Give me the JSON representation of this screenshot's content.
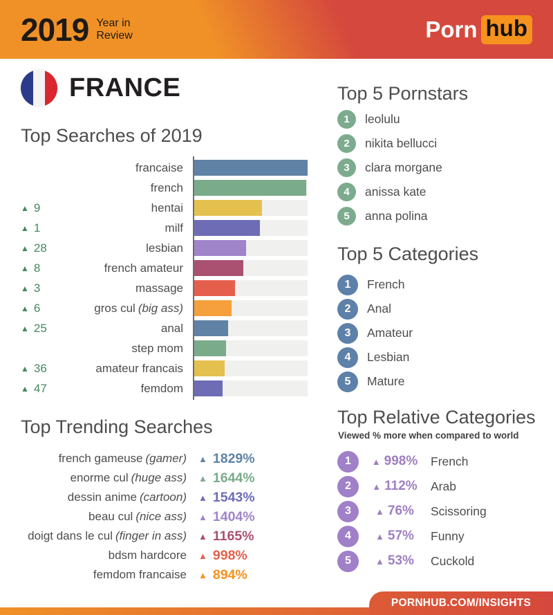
{
  "colors": {
    "brand_orange": "#f09127",
    "brand_red": "#d5483d",
    "logo_orange": "#f6921e",
    "heading_gray": "#4d4d4f",
    "rank_change_green": "#45875f",
    "pornstars_badge_green": "#7dab8d",
    "categories_badge_blue": "#5d81a8",
    "relative_badge_purple": "#a080c8",
    "bar_track_gray": "#f0f0ee"
  },
  "header": {
    "year": "2019",
    "subtitle_line1": "Year in",
    "subtitle_line2": "Review",
    "logo_part1": "Porn",
    "logo_part2": "hub"
  },
  "country": {
    "name": "FRANCE"
  },
  "chart_data": {
    "type": "bar",
    "orientation": "horizontal",
    "title": "Top Searches of 2019",
    "value_note": "bar length as % of longest bar (no numeric labels shown)",
    "xlim": [
      0,
      100
    ],
    "items": [
      {
        "change": "",
        "term": "francaise",
        "note": "",
        "value_pct": 100,
        "color": "#5f82a5"
      },
      {
        "change": "",
        "term": "french",
        "note": "",
        "value_pct": 99,
        "color": "#7aab8b"
      },
      {
        "change": "9",
        "term": "hentai",
        "note": "",
        "value_pct": 60,
        "color": "#e4c04f"
      },
      {
        "change": "1",
        "term": "milf",
        "note": "",
        "value_pct": 58,
        "color": "#6e6cb5"
      },
      {
        "change": "28",
        "term": "lesbian",
        "note": "",
        "value_pct": 46,
        "color": "#9f84c9"
      },
      {
        "change": "8",
        "term": "french amateur",
        "note": "",
        "value_pct": 43,
        "color": "#aa5070"
      },
      {
        "change": "3",
        "term": "massage",
        "note": "",
        "value_pct": 36,
        "color": "#e4604d"
      },
      {
        "change": "6",
        "term": "gros cul",
        "note": "(big ass)",
        "value_pct": 33,
        "color": "#f5a03c"
      },
      {
        "change": "25",
        "term": "anal",
        "note": "",
        "value_pct": 30,
        "color": "#5f82a5"
      },
      {
        "change": "",
        "term": "step mom",
        "note": "",
        "value_pct": 28,
        "color": "#7aab8b"
      },
      {
        "change": "36",
        "term": "amateur francais",
        "note": "",
        "value_pct": 27,
        "color": "#e4c04f"
      },
      {
        "change": "47",
        "term": "femdom",
        "note": "",
        "value_pct": 25,
        "color": "#6e6cb5"
      }
    ]
  },
  "trending": {
    "title": "Top Trending Searches",
    "items": [
      {
        "term": "french gameuse",
        "note": "(gamer)",
        "pct": "1829%",
        "color": "#5f82a5"
      },
      {
        "term": "enorme cul",
        "note": "(huge ass)",
        "pct": "1644%",
        "color": "#7aab8b"
      },
      {
        "term": "dessin anime",
        "note": "(cartoon)",
        "pct": "1543%",
        "color": "#6e6cb5"
      },
      {
        "term": "beau cul",
        "note": "(nice ass)",
        "pct": "1404%",
        "color": "#9f84c9"
      },
      {
        "term": "doigt dans le cul",
        "note": "(finger in ass)",
        "pct": "1165%",
        "color": "#aa5070"
      },
      {
        "term": "bdsm hardcore",
        "note": "",
        "pct": "998%",
        "color": "#e4604d"
      },
      {
        "term": "femdom francaise",
        "note": "",
        "pct": "894%",
        "color": "#f6921e"
      }
    ]
  },
  "pornstars": {
    "title": "Top 5 Pornstars",
    "items": [
      "leolulu",
      "nikita bellucci",
      "clara morgane",
      "anissa kate",
      "anna polina"
    ]
  },
  "categories": {
    "title": "Top 5 Categories",
    "items": [
      "French",
      "Anal",
      "Amateur",
      "Lesbian",
      "Mature"
    ]
  },
  "relative": {
    "title": "Top Relative Categories",
    "subtitle": "Viewed % more when compared to world",
    "items": [
      {
        "pct": "998%",
        "name": "French"
      },
      {
        "pct": "112%",
        "name": "Arab"
      },
      {
        "pct": "76%",
        "name": "Scissoring"
      },
      {
        "pct": "57%",
        "name": "Funny"
      },
      {
        "pct": "53%",
        "name": "Cuckold"
      }
    ]
  },
  "footer": {
    "url": "PORNHUB.COM/INSIGHTS"
  }
}
